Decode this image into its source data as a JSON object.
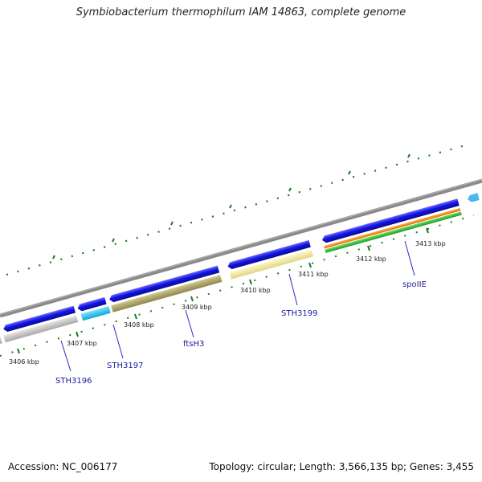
{
  "title": "Symbiobacterium thermophilum IAM 14863, complete genome",
  "footer": {
    "accession": "Accession: NC_006177",
    "summary": "Topology: circular; Length: 3,566,135 bp; Genes: 3,455"
  },
  "genome": {
    "accession": "NC_006177",
    "topology": "circular",
    "length_bp": 3566135,
    "gene_count": 3455
  },
  "map": {
    "ticks": [
      {
        "label": "3406 kbp"
      },
      {
        "label": "3407 kbp"
      },
      {
        "label": "3408 kbp"
      },
      {
        "label": "3409 kbp"
      },
      {
        "label": "3410 kbp"
      },
      {
        "label": "3411 kbp"
      },
      {
        "label": "3412 kbp"
      },
      {
        "label": "3413 kbp"
      }
    ],
    "gene_labels": [
      {
        "name": "STH3196"
      },
      {
        "name": "STH3197"
      },
      {
        "name": "ftsH3"
      },
      {
        "name": "STH3199"
      },
      {
        "name": "spoIIE"
      }
    ],
    "colors": {
      "backbone": "#888888",
      "ticks": "#1f7a1f",
      "cds_forward": "#1010e0",
      "gene_label": "#1a1aa0"
    }
  }
}
